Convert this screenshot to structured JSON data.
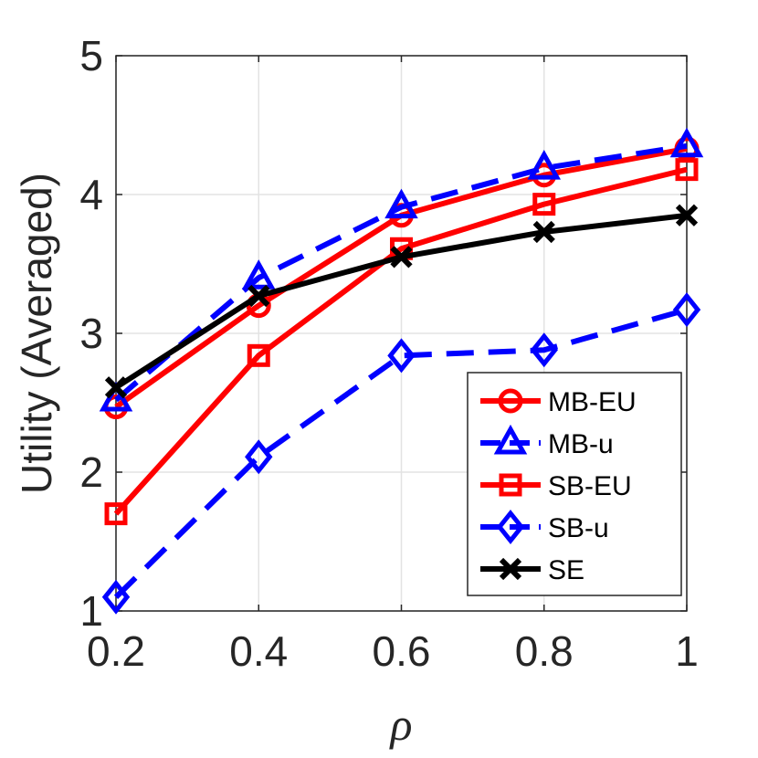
{
  "chart_data": {
    "type": "line",
    "title": "",
    "xlabel": "ρ",
    "ylabel": "Utility (Averaged)",
    "x": [
      0.2,
      0.4,
      0.6,
      0.8,
      1.0
    ],
    "xlim": [
      0.2,
      1.0
    ],
    "ylim": [
      1,
      5
    ],
    "xticks": [
      0.2,
      0.4,
      0.6,
      0.8,
      1.0
    ],
    "xtick_labels": [
      "0.2",
      "0.4",
      "0.6",
      "0.8",
      "1"
    ],
    "yticks": [
      1,
      2,
      3,
      4,
      5
    ],
    "ytick_labels": [
      "1",
      "2",
      "3",
      "4",
      "5"
    ],
    "grid": true,
    "legend_position": "bottom-right",
    "series": [
      {
        "name": "MB-EU",
        "values": [
          2.47,
          3.2,
          3.85,
          4.14,
          4.33
        ],
        "color": "#ff0000",
        "dash": "solid",
        "marker": "circle"
      },
      {
        "name": "MB-u",
        "values": [
          2.52,
          3.4,
          3.91,
          4.19,
          4.35
        ],
        "color": "#0000ff",
        "dash": "dashed",
        "marker": "triangle"
      },
      {
        "name": "SB-EU",
        "values": [
          1.7,
          2.84,
          3.61,
          3.93,
          4.18
        ],
        "color": "#ff0000",
        "dash": "solid",
        "marker": "square"
      },
      {
        "name": "SB-u",
        "values": [
          1.1,
          2.11,
          2.84,
          2.88,
          3.17
        ],
        "color": "#0000ff",
        "dash": "dashed",
        "marker": "diamond"
      },
      {
        "name": "SE",
        "values": [
          2.61,
          3.27,
          3.55,
          3.73,
          3.85
        ],
        "color": "#000000",
        "dash": "solid",
        "marker": "x"
      }
    ]
  }
}
